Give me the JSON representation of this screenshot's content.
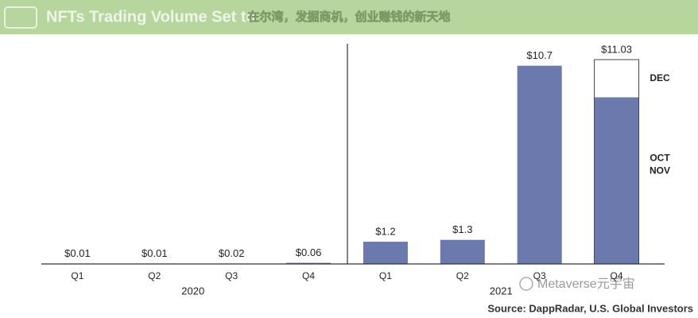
{
  "overlay_caption": "在尔湾，发掘商机，创业赚钱的新天地",
  "watermark": "Metaverse元宇宙",
  "chart_data": {
    "type": "bar",
    "title": "NFTs Trading Volume Set to",
    "categories": [
      "Q1",
      "Q2",
      "Q3",
      "Q4",
      "Q1",
      "Q2",
      "Q3",
      "Q4"
    ],
    "groups": [
      "2020",
      "2021"
    ],
    "values": [
      0.01,
      0.01,
      0.02,
      0.06,
      1.2,
      1.3,
      10.7,
      11.03
    ],
    "value_labels": [
      "$0.01",
      "$0.01",
      "$0.02",
      "$0.06",
      "$1.2",
      "$1.3",
      "$10.7",
      "$11.03"
    ],
    "color": "#6b79ad",
    "segments": [
      {
        "name": [
          "OCT",
          "NOV"
        ],
        "value": 9.0,
        "color": "#6b79ad"
      },
      {
        "name": [
          "DEC"
        ],
        "value": 2.03,
        "color": "#ffffff"
      }
    ],
    "source": "Source: DappRadar, U.S. Global Investors"
  }
}
